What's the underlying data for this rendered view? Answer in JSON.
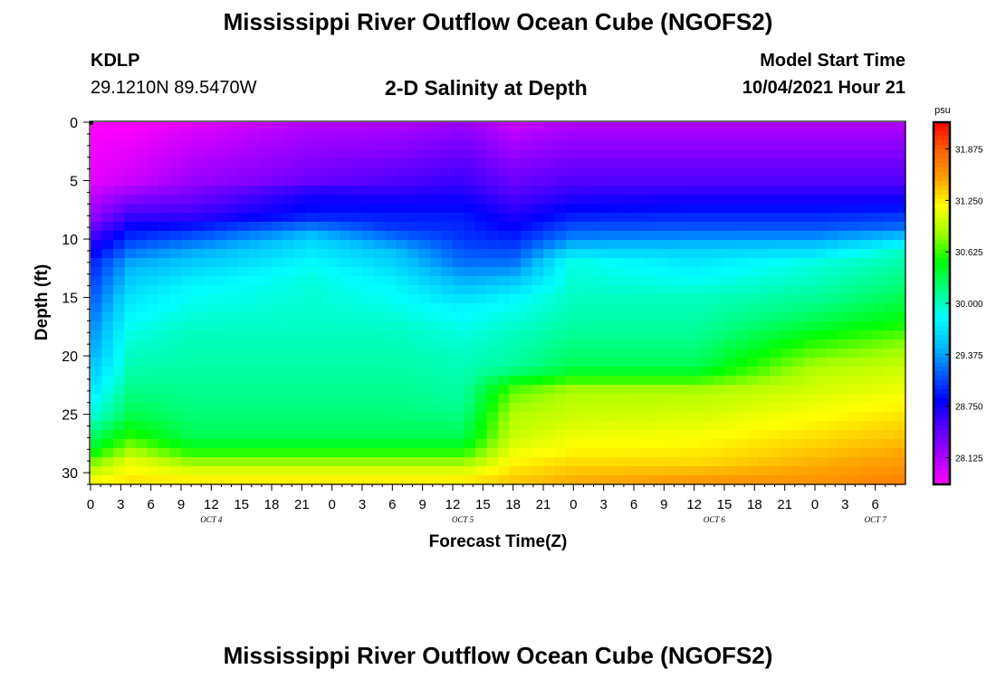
{
  "header": {
    "title": "Mississippi River Outflow Ocean Cube (NGOFS2)",
    "station": "KDLP",
    "coordinates": "29.1210N  89.5470W",
    "subtitle": "2-D Salinity at Depth",
    "model_start_label": "Model Start Time",
    "model_start_value": "10/04/2021 Hour 21"
  },
  "footer": {
    "title": "Mississippi River Outflow Ocean Cube (NGOFS2)"
  },
  "chart_data": {
    "type": "heatmap",
    "title": "2-D Salinity at Depth",
    "xlabel": "Forecast Time(Z)",
    "ylabel": "Depth (ft)",
    "x_range_hours": [
      0,
      81
    ],
    "x_tick_labels": [
      "0",
      "3",
      "6",
      "9",
      "12",
      "15",
      "18",
      "21",
      "0",
      "3",
      "6",
      "9",
      "12",
      "15",
      "18",
      "21",
      "0",
      "3",
      "6",
      "9",
      "12",
      "15",
      "18",
      "21",
      "0",
      "3",
      "6"
    ],
    "date_labels": [
      {
        "text": "OCT 4",
        "hour": 12
      },
      {
        "text": "OCT 5",
        "hour": 37
      },
      {
        "text": "OCT 6",
        "hour": 62
      },
      {
        "text": "OCT 7",
        "hour": 78
      }
    ],
    "ylim": [
      0,
      31
    ],
    "y_tick_labels": [
      "0",
      "5",
      "10",
      "15",
      "20",
      "25",
      "30"
    ],
    "colorbar": {
      "unit": "psu",
      "min": 27.8,
      "max": 32.2,
      "tick_labels": [
        "31.875",
        "31.250",
        "30.625",
        "30.000",
        "29.375",
        "28.750",
        "28.125"
      ],
      "colors": [
        "#ff00ff",
        "#aa00ff",
        "#5a00ff",
        "#0000ff",
        "#0060ff",
        "#00c0ff",
        "#00ffff",
        "#00ff80",
        "#00ff00",
        "#a0ff00",
        "#ffff00",
        "#ffa000",
        "#ff6000",
        "#ff0000"
      ]
    },
    "salinity_profiles_psu": [
      {
        "hour": 0,
        "depth_ft": [
          0,
          5,
          8,
          10,
          12,
          15,
          18,
          20,
          22,
          25,
          28,
          30,
          31
        ],
        "psu": [
          27.8,
          27.9,
          28.2,
          28.6,
          28.9,
          29.1,
          29.3,
          29.4,
          29.6,
          29.9,
          30.4,
          31.0,
          31.2
        ]
      },
      {
        "hour": 4,
        "depth_ft": [
          0,
          5,
          8,
          10,
          12,
          15,
          18,
          20,
          22,
          25,
          27,
          29,
          31
        ],
        "psu": [
          27.8,
          28.0,
          28.6,
          29.0,
          29.4,
          29.7,
          29.9,
          30.0,
          30.1,
          30.3,
          30.6,
          31.1,
          31.3
        ]
      },
      {
        "hour": 10,
        "depth_ft": [
          0,
          5,
          8,
          9,
          11,
          14,
          18,
          22,
          25,
          27,
          28,
          29,
          30,
          31
        ],
        "psu": [
          27.9,
          28.2,
          28.6,
          28.9,
          29.4,
          29.8,
          30.0,
          30.1,
          30.2,
          30.3,
          30.5,
          30.8,
          31.1,
          31.3
        ]
      },
      {
        "hour": 22,
        "depth_ft": [
          0,
          5,
          6,
          8,
          10,
          13,
          18,
          22,
          25,
          27,
          28,
          29,
          30,
          31
        ],
        "psu": [
          28.1,
          28.4,
          28.7,
          28.9,
          29.6,
          29.9,
          30.0,
          30.1,
          30.2,
          30.3,
          30.5,
          30.8,
          31.1,
          31.3
        ]
      },
      {
        "hour": 30,
        "depth_ft": [
          0,
          5,
          7,
          9,
          11,
          14,
          18,
          22,
          25,
          27,
          28,
          29,
          30,
          31
        ],
        "psu": [
          28.1,
          28.5,
          28.8,
          29.0,
          29.5,
          29.8,
          30.0,
          30.1,
          30.2,
          30.3,
          30.5,
          30.8,
          31.1,
          31.3
        ]
      },
      {
        "hour": 37,
        "depth_ft": [
          0,
          5,
          8,
          10,
          12,
          14,
          16,
          20,
          24,
          27,
          28,
          29,
          30,
          31
        ],
        "psu": [
          28.2,
          28.6,
          28.9,
          29.0,
          29.2,
          29.5,
          29.8,
          30.0,
          30.1,
          30.3,
          30.5,
          30.8,
          31.1,
          31.3
        ]
      },
      {
        "hour": 42,
        "depth_ft": [
          0,
          5,
          9,
          12,
          15,
          18,
          21,
          22,
          23,
          25,
          27,
          29,
          31
        ],
        "psu": [
          28.0,
          28.4,
          28.8,
          29.2,
          29.8,
          30.0,
          30.1,
          30.4,
          30.7,
          30.9,
          31.0,
          31.2,
          31.4
        ]
      },
      {
        "hour": 48,
        "depth_ft": [
          0,
          5,
          8,
          10,
          12,
          15,
          18,
          21,
          22,
          23,
          25,
          28,
          31
        ],
        "psu": [
          28.1,
          28.5,
          28.9,
          29.3,
          29.9,
          30.0,
          30.1,
          30.3,
          30.6,
          30.9,
          31.0,
          31.2,
          31.5
        ]
      },
      {
        "hour": 60,
        "depth_ft": [
          0,
          5,
          7,
          9,
          11,
          15,
          18,
          21,
          22,
          23,
          26,
          29,
          31
        ],
        "psu": [
          28.1,
          28.5,
          28.8,
          29.1,
          29.6,
          30.0,
          30.1,
          30.3,
          30.6,
          30.9,
          31.1,
          31.3,
          31.6
        ]
      },
      {
        "hour": 72,
        "depth_ft": [
          0,
          5,
          7,
          9,
          12,
          15,
          17,
          19,
          21,
          24,
          27,
          31
        ],
        "psu": [
          28.1,
          28.5,
          28.8,
          29.1,
          29.9,
          30.1,
          30.3,
          30.6,
          30.9,
          31.1,
          31.3,
          31.6
        ]
      },
      {
        "hour": 81,
        "depth_ft": [
          0,
          5,
          7,
          9,
          11,
          14,
          17,
          19,
          21,
          24,
          27,
          31
        ],
        "psu": [
          28.1,
          28.5,
          28.8,
          29.2,
          30.0,
          30.2,
          30.5,
          30.8,
          31.0,
          31.2,
          31.4,
          31.7
        ]
      }
    ]
  }
}
